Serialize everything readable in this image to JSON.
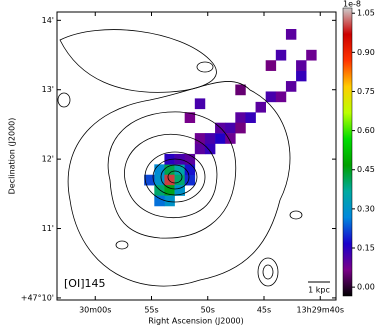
{
  "chart_data": {
    "type": "map",
    "xlabel": "Right Ascension (J2000)",
    "ylabel": "Declination (J2000)",
    "annotation": "[OI]145",
    "scalebar_label": "1 kpc",
    "xlim": [
      63.4,
      38.6
    ],
    "ylim": [
      9.97,
      14.12
    ],
    "xticks": [
      {
        "value": 60,
        "label": "30m00s"
      },
      {
        "value": 55,
        "label": "55s"
      },
      {
        "value": 50,
        "label": "50s"
      },
      {
        "value": 45,
        "label": "45s"
      },
      {
        "value": 40,
        "label": "13h29m40s"
      }
    ],
    "yticks": [
      {
        "value": 10,
        "label": "+47°10'"
      },
      {
        "value": 11,
        "label": "11'"
      },
      {
        "value": 12,
        "label": "12'"
      },
      {
        "value": 13,
        "label": "13'"
      },
      {
        "value": 14,
        "label": "14'"
      }
    ],
    "colorbar_offset_label": "1e-8",
    "clim": [
      -0.034,
      1.07
    ],
    "cticks": [
      {
        "value": 0,
        "label": "0.00"
      },
      {
        "value": 0.15,
        "label": "0.15"
      },
      {
        "value": 0.3,
        "label": "0.30"
      },
      {
        "value": 0.45,
        "label": "0.45"
      },
      {
        "value": 0.6,
        "label": "0.60"
      },
      {
        "value": 0.75,
        "label": "0.75"
      },
      {
        "value": 0.9,
        "label": "0.90"
      },
      {
        "value": 1.05,
        "label": "1.05"
      }
    ],
    "colormap": [
      "#000000",
      "#7a0088",
      "#1a00cc",
      "#0088dd",
      "#00aaa0",
      "#00a000",
      "#00dd00",
      "#bbff00",
      "#ffcc00",
      "#ff3300",
      "#cc0000",
      "#cccccc"
    ],
    "cells": [
      [
        54.3,
        11.85,
        0.28
      ],
      [
        53.4,
        11.85,
        0.42
      ],
      [
        52.5,
        11.85,
        0.35
      ],
      [
        54.3,
        11.7,
        0.3
      ],
      [
        53.4,
        11.7,
        1.0
      ],
      [
        52.5,
        11.7,
        0.4
      ],
      [
        55.2,
        11.7,
        0.22
      ],
      [
        54.3,
        11.55,
        0.4
      ],
      [
        53.4,
        11.55,
        0.45
      ],
      [
        52.5,
        11.55,
        0.3
      ],
      [
        51.6,
        11.7,
        0.2
      ],
      [
        51.6,
        11.85,
        0.18
      ],
      [
        53.4,
        12.0,
        0.15
      ],
      [
        52.5,
        12.0,
        0.12
      ],
      [
        51.6,
        12.0,
        0.1
      ],
      [
        50.7,
        12.15,
        0.1
      ],
      [
        49.8,
        12.15,
        0.14
      ],
      [
        50.7,
        12.3,
        0.08
      ],
      [
        49.8,
        12.3,
        0.12
      ],
      [
        48.9,
        12.3,
        0.16
      ],
      [
        48.9,
        12.45,
        0.1
      ],
      [
        48.0,
        12.45,
        0.12
      ],
      [
        48.0,
        12.3,
        0.08
      ],
      [
        47.1,
        12.6,
        0.1
      ],
      [
        46.2,
        12.6,
        0.14
      ],
      [
        47.1,
        12.45,
        0.06
      ],
      [
        45.3,
        12.75,
        0.1
      ],
      [
        44.4,
        12.9,
        0.12
      ],
      [
        43.5,
        12.9,
        0.08
      ],
      [
        42.6,
        13.05,
        0.1
      ],
      [
        41.7,
        13.2,
        0.14
      ],
      [
        41.7,
        13.35,
        0.1
      ],
      [
        44.4,
        13.35,
        0.06
      ],
      [
        43.5,
        13.5,
        0.12
      ],
      [
        40.8,
        13.5,
        0.08
      ],
      [
        42.6,
        13.8,
        0.1
      ],
      [
        47.1,
        13.0,
        0.05
      ],
      [
        50.7,
        12.8,
        0.12
      ],
      [
        51.6,
        12.6,
        0.07
      ],
      [
        53.4,
        11.4,
        0.3
      ],
      [
        54.3,
        11.4,
        0.25
      ]
    ]
  }
}
